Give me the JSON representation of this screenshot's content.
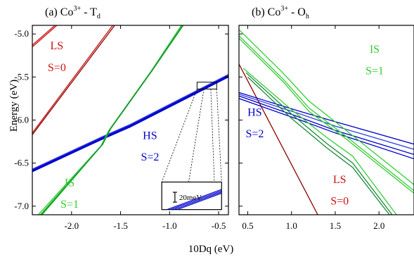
{
  "colors": {
    "LS": "#cc1010",
    "LS_dark": "#8a0000",
    "IS": "#33cc33",
    "IS_dark": "#1a8a3a",
    "HS": "#0000cc",
    "HS_light": "#3344dd"
  },
  "ylabel": "Energy (eV)",
  "xlabel": "10Dq (eV)",
  "chart_data": [
    {
      "type": "line",
      "panel": "(a)",
      "title_main": "(a)  Co",
      "title_sup": "3+",
      "title_dash": " - T",
      "title_sub": "d",
      "xlim": [
        -2.4,
        -0.4
      ],
      "ylim": [
        -7.1,
        -4.9
      ],
      "xticks": [
        -2.0,
        -1.5,
        -1.0,
        -0.5
      ],
      "xtick_labels": [
        "-2.0",
        "-1.5",
        "-1.0",
        "-0.5"
      ],
      "yticks": [
        -5.0,
        -5.5,
        -6.0,
        -6.5,
        -7.0
      ],
      "ytick_labels": [
        "-5.0",
        "-5.5",
        "-6.0",
        "-6.5",
        "-7.0"
      ],
      "annotations": [
        {
          "label": "LS",
          "color_key": "LS",
          "x": -2.15,
          "y": -5.18
        },
        {
          "label": "S=0",
          "color_key": "LS",
          "x": -2.15,
          "y": -5.43
        },
        {
          "label": "HS",
          "color_key": "HS",
          "x": -1.2,
          "y": -6.22
        },
        {
          "label": "S=2",
          "color_key": "HS",
          "x": -1.2,
          "y": -6.47
        },
        {
          "label": "IS",
          "color_key": "IS",
          "x": -2.02,
          "y": -6.77
        },
        {
          "label": "S=1",
          "color_key": "IS",
          "x": -2.02,
          "y": -7.02
        }
      ],
      "inset": {
        "label": "20meV",
        "source_box": [
          -0.72,
          -0.52,
          -5.64,
          -5.56
        ],
        "frame": [
          -1.08,
          -0.47,
          -6.72,
          -7.04
        ]
      },
      "series": [
        {
          "color_key": "LS",
          "points": [
            [
              -2.4,
              -5.15
            ],
            [
              -2.15,
              -4.9
            ]
          ]
        },
        {
          "color_key": "LS",
          "points": [
            [
              -2.4,
              -5.13
            ],
            [
              -2.17,
              -4.9
            ]
          ]
        },
        {
          "color_key": "LS_dark",
          "points": [
            [
              -2.4,
              -6.17
            ],
            [
              -1.56,
              -4.9
            ]
          ]
        },
        {
          "color_key": "LS",
          "points": [
            [
              -2.4,
              -6.15
            ],
            [
              -1.58,
              -4.9
            ]
          ]
        },
        {
          "color_key": "HS",
          "points": [
            [
              -2.4,
              -6.6
            ],
            [
              -1.7,
              -6.23
            ],
            [
              -1.4,
              -6.08
            ],
            [
              -0.4,
              -5.5
            ]
          ]
        },
        {
          "color_key": "HS",
          "points": [
            [
              -2.4,
              -6.59
            ],
            [
              -1.7,
              -6.22
            ],
            [
              -1.4,
              -6.07
            ],
            [
              -0.4,
              -5.49
            ]
          ]
        },
        {
          "color_key": "HS",
          "points": [
            [
              -2.4,
              -6.58
            ],
            [
              -1.7,
              -6.21
            ],
            [
              -1.4,
              -6.06
            ],
            [
              -0.4,
              -5.48
            ]
          ]
        },
        {
          "color_key": "HS_light",
          "points": [
            [
              -2.4,
              -6.57
            ],
            [
              -1.7,
              -6.2
            ],
            [
              -1.4,
              -6.05
            ],
            [
              -0.4,
              -5.47
            ]
          ]
        },
        {
          "color_key": "IS",
          "points": [
            [
              -2.34,
              -7.1
            ],
            [
              -1.7,
              -6.3
            ],
            [
              -1.62,
              -6.12
            ],
            [
              -1.2,
              -5.45
            ],
            [
              -0.88,
              -4.9
            ]
          ]
        },
        {
          "color_key": "IS",
          "points": [
            [
              -2.32,
              -7.1
            ],
            [
              -1.69,
              -6.29
            ],
            [
              -1.61,
              -6.11
            ],
            [
              -1.19,
              -5.44
            ],
            [
              -0.87,
              -4.9
            ]
          ]
        },
        {
          "color_key": "IS",
          "points": [
            [
              -2.3,
              -7.1
            ],
            [
              -1.68,
              -6.28
            ],
            [
              -1.6,
              -6.1
            ],
            [
              -1.18,
              -5.43
            ],
            [
              -0.86,
              -4.9
            ]
          ]
        },
        {
          "color_key": "IS_dark",
          "points": [
            [
              -2.31,
              -7.1
            ],
            [
              -1.685,
              -6.285
            ],
            [
              -1.605,
              -6.105
            ],
            [
              -1.185,
              -5.435
            ],
            [
              -0.865,
              -4.9
            ]
          ]
        }
      ]
    },
    {
      "type": "line",
      "panel": "(b)",
      "title_main": "(b)  Co",
      "title_sup": "3+",
      "title_dash": " - O",
      "title_sub": "h",
      "xlim": [
        0.4,
        2.4
      ],
      "ylim": [
        -7.1,
        -4.9
      ],
      "xticks": [
        0.5,
        1.0,
        1.5,
        2.0
      ],
      "xtick_labels": [
        "0.5",
        "1.0",
        "1.5",
        "2.0"
      ],
      "yticks": [
        -5.0,
        -5.5,
        -6.0,
        -6.5,
        -7.0
      ],
      "ytick_labels": [
        "",
        "",
        "",
        "",
        ""
      ],
      "annotations": [
        {
          "label": "IS",
          "color_key": "IS",
          "x": 1.95,
          "y": -5.22
        },
        {
          "label": "S=1",
          "color_key": "IS",
          "x": 1.95,
          "y": -5.47
        },
        {
          "label": "HS",
          "color_key": "HS",
          "x": 0.58,
          "y": -5.95
        },
        {
          "label": "S=2",
          "color_key": "HS",
          "x": 0.58,
          "y": -6.2
        },
        {
          "label": "LS",
          "color_key": "LS",
          "x": 1.55,
          "y": -6.73
        },
        {
          "label": "S=0",
          "color_key": "LS",
          "x": 1.55,
          "y": -6.98
        }
      ],
      "series": [
        {
          "color_key": "LS_dark",
          "points": [
            [
              0.4,
              -5.35
            ],
            [
              1.3,
              -7.1
            ]
          ]
        },
        {
          "color_key": "HS",
          "points": [
            [
              0.4,
              -5.68
            ],
            [
              1.1,
              -5.9
            ],
            [
              1.5,
              -6.02
            ],
            [
              2.4,
              -6.28
            ]
          ]
        },
        {
          "color_key": "HS",
          "points": [
            [
              0.4,
              -5.72
            ],
            [
              1.1,
              -5.97
            ],
            [
              1.5,
              -6.12
            ],
            [
              2.4,
              -6.4
            ]
          ]
        },
        {
          "color_key": "HS",
          "points": [
            [
              0.4,
              -5.75
            ],
            [
              1.1,
              -6.0
            ],
            [
              1.5,
              -6.15
            ],
            [
              2.4,
              -6.45
            ]
          ]
        },
        {
          "color_key": "HS_light",
          "points": [
            [
              0.4,
              -5.7
            ],
            [
              1.1,
              -5.93
            ],
            [
              1.5,
              -6.07
            ],
            [
              2.4,
              -6.34
            ]
          ]
        },
        {
          "color_key": "IS",
          "points": [
            [
              0.4,
              -4.95
            ],
            [
              0.9,
              -5.45
            ],
            [
              1.2,
              -5.78
            ],
            [
              1.6,
              -6.1
            ],
            [
              2.4,
              -6.75
            ]
          ]
        },
        {
          "color_key": "IS",
          "points": [
            [
              0.4,
              -5.02
            ],
            [
              0.9,
              -5.52
            ],
            [
              1.2,
              -5.86
            ],
            [
              1.6,
              -6.17
            ],
            [
              2.4,
              -6.82
            ]
          ]
        },
        {
          "color_key": "IS",
          "points": [
            [
              0.4,
              -5.05
            ],
            [
              0.9,
              -5.55
            ],
            [
              1.2,
              -5.9
            ],
            [
              1.6,
              -6.2
            ],
            [
              2.4,
              -6.85
            ]
          ]
        },
        {
          "color_key": "IS",
          "points": [
            [
              0.45,
              -5.4
            ],
            [
              1.0,
              -5.88
            ],
            [
              1.4,
              -6.2
            ],
            [
              1.7,
              -6.42
            ],
            [
              2.2,
              -7.1
            ]
          ]
        },
        {
          "color_key": "IS_dark",
          "points": [
            [
              0.48,
              -5.45
            ],
            [
              1.0,
              -5.93
            ],
            [
              1.4,
              -6.27
            ],
            [
              1.7,
              -6.5
            ],
            [
              2.15,
              -7.1
            ]
          ]
        },
        {
          "color_key": "IS_dark",
          "points": [
            [
              0.5,
              -5.5
            ],
            [
              1.0,
              -5.98
            ],
            [
              1.4,
              -6.32
            ],
            [
              1.7,
              -6.55
            ],
            [
              2.12,
              -7.1
            ]
          ]
        }
      ]
    }
  ]
}
